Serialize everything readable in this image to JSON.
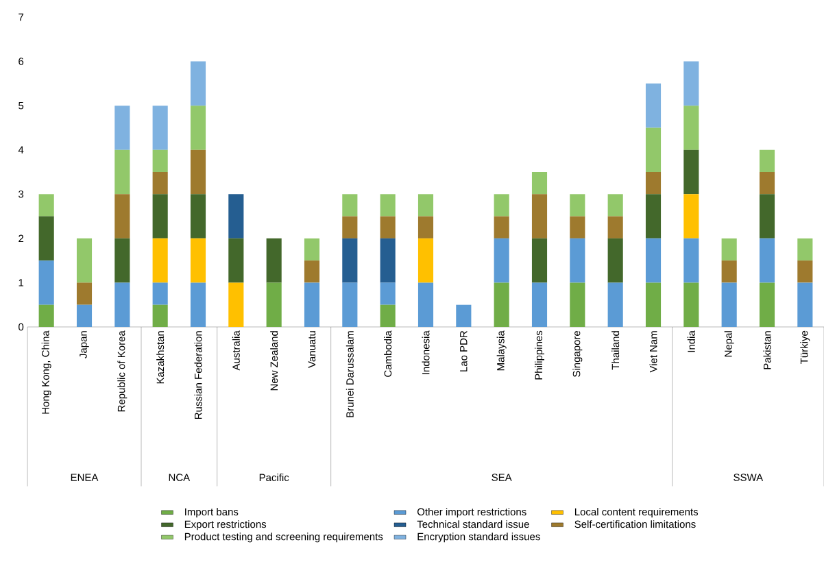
{
  "chart_data": {
    "type": "bar",
    "stacked": true,
    "legend": "bottom",
    "categories": [
      "Hong Kong, China",
      "Japan",
      "Republic of Korea",
      "Kazakhstan",
      "Russian Federation",
      "Australia",
      "New Zealand",
      "Vanuatu",
      "Brunei Darussalam",
      "Cambodia",
      "Indonesia",
      "Lao PDR",
      "Malaysia",
      "Philippines",
      "Singapore",
      "Thailand",
      "Viet Nam",
      "India",
      "Nepal",
      "Pakistan",
      "Türkiye"
    ],
    "ylim": [
      0,
      7
    ],
    "yticks": [
      0,
      1,
      2,
      3,
      4,
      5,
      6,
      7
    ],
    "series": [
      {
        "name": "Import bans",
        "color": "#70ad47",
        "values": [
          0.5,
          0,
          0,
          0.5,
          0,
          0,
          1,
          0,
          0,
          0.5,
          0,
          0,
          1,
          0,
          1,
          0,
          1,
          1,
          0,
          1,
          0
        ]
      },
      {
        "name": "Other import restrictions",
        "color": "#5b9bd5",
        "values": [
          1,
          0.5,
          1,
          0.5,
          1,
          0,
          0,
          1,
          1,
          0.5,
          1,
          0.5,
          1,
          1,
          1,
          1,
          1,
          1,
          1,
          1,
          1
        ]
      },
      {
        "name": "Local content requirements",
        "color": "#ffc000",
        "values": [
          0,
          0,
          0,
          1,
          1,
          1,
          0,
          0,
          0,
          0,
          1,
          0,
          0,
          0,
          0,
          0,
          0,
          1,
          0,
          0,
          0
        ]
      },
      {
        "name": "Export restrictions",
        "color": "#43682b",
        "values": [
          1,
          0,
          1,
          1,
          1,
          1,
          1,
          0,
          0,
          0,
          0,
          0,
          0,
          1,
          0,
          1,
          1,
          1,
          0,
          1,
          0
        ]
      },
      {
        "name": "Technical standard issue",
        "color": "#255e91",
        "values": [
          0,
          0,
          0,
          0,
          0,
          1,
          0,
          0,
          1,
          1,
          0,
          0,
          0,
          0,
          0,
          0,
          0,
          0,
          0,
          0,
          0
        ]
      },
      {
        "name": "Self-certification limitations",
        "color": "#9e7a2e",
        "values": [
          0,
          0.5,
          1,
          0.5,
          1,
          0,
          0,
          0.5,
          0.5,
          0.5,
          0.5,
          0,
          0.5,
          1,
          0.5,
          0.5,
          0.5,
          0,
          0.5,
          0.5,
          0.5
        ]
      },
      {
        "name": "Product testing and screening requirements",
        "color": "#92c86a",
        "values": [
          0.5,
          1,
          1,
          0.5,
          1,
          0,
          0,
          0.5,
          0.5,
          0.5,
          0.5,
          0,
          0.5,
          0.5,
          0.5,
          0.5,
          1,
          1,
          0.5,
          0.5,
          0.5
        ]
      },
      {
        "name": "Encryption standard issues",
        "color": "#7fb2e0",
        "values": [
          0,
          0,
          1,
          1,
          1,
          0,
          0,
          0,
          0,
          0,
          0,
          0,
          0,
          0,
          0,
          0,
          1,
          1,
          0,
          0,
          0
        ]
      }
    ],
    "annotations": [
      "ENEA",
      "NCA",
      "Pacific",
      "SEA",
      "SSWA"
    ]
  }
}
